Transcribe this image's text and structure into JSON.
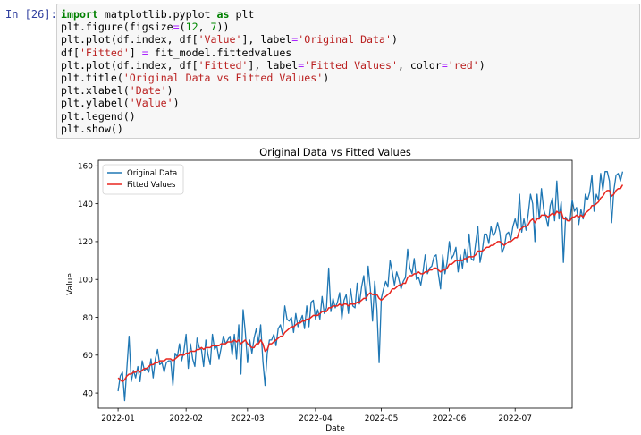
{
  "prompt_label": "In [26]:",
  "code_lines": [
    [
      {
        "t": "import",
        "c": "kw"
      },
      {
        "t": " matplotlib.pyplot "
      },
      {
        "t": "as",
        "c": "kw"
      },
      {
        "t": " plt"
      }
    ],
    [
      {
        "t": "plt.figure(figsize"
      },
      {
        "t": "=",
        "c": "op"
      },
      {
        "t": "("
      },
      {
        "t": "12",
        "c": "nm"
      },
      {
        "t": ", "
      },
      {
        "t": "7",
        "c": "nm"
      },
      {
        "t": "))"
      }
    ],
    [
      {
        "t": "plt.plot(df.index, df["
      },
      {
        "t": "'Value'",
        "c": "st"
      },
      {
        "t": "], label"
      },
      {
        "t": "=",
        "c": "op"
      },
      {
        "t": "'Original Data'",
        "c": "st"
      },
      {
        "t": ")"
      }
    ],
    [
      {
        "t": "df["
      },
      {
        "t": "'Fitted'",
        "c": "st"
      },
      {
        "t": "] "
      },
      {
        "t": "=",
        "c": "op"
      },
      {
        "t": " fit_model.fittedvalues"
      }
    ],
    [
      {
        "t": "plt.plot(df.index, df["
      },
      {
        "t": "'Fitted'",
        "c": "st"
      },
      {
        "t": "], label"
      },
      {
        "t": "=",
        "c": "op"
      },
      {
        "t": "'Fitted Values'",
        "c": "st"
      },
      {
        "t": ", color"
      },
      {
        "t": "=",
        "c": "op"
      },
      {
        "t": "'red'",
        "c": "st"
      },
      {
        "t": ")"
      }
    ],
    [
      {
        "t": "plt.title("
      },
      {
        "t": "'Original Data vs Fitted Values'",
        "c": "st"
      },
      {
        "t": ")"
      }
    ],
    [
      {
        "t": "plt.xlabel("
      },
      {
        "t": "'Date'",
        "c": "st"
      },
      {
        "t": ")"
      }
    ],
    [
      {
        "t": "plt.ylabel("
      },
      {
        "t": "'Value'",
        "c": "st"
      },
      {
        "t": ")"
      }
    ],
    [
      {
        "t": "plt.legend()"
      }
    ],
    [
      {
        "t": "plt.show()"
      }
    ]
  ],
  "colors": {
    "original": "#1f77b4",
    "fitted": "#e8261f"
  },
  "chart_data": {
    "type": "line",
    "title": "Original Data vs Fitted Values",
    "xlabel": "Date",
    "ylabel": "Value",
    "x_range": [
      "2021-12-23",
      "2022-07-27"
    ],
    "ylim": [
      32,
      163
    ],
    "x_ticks": [
      "2022-01-01",
      "2022-02-01",
      "2022-03-01",
      "2022-04-01",
      "2022-05-01",
      "2022-06-01",
      "2022-07-01"
    ],
    "x_tick_labels": [
      "2022-01",
      "2022-02",
      "2022-03",
      "2022-04",
      "2022-05",
      "2022-06",
      "2022-07"
    ],
    "y_ticks": [
      40,
      60,
      80,
      100,
      120,
      140,
      160
    ],
    "legend_position": "upper-left",
    "grid": false,
    "series": [
      {
        "name": "Original Data",
        "x_start": "2022-01-01",
        "step_days": 1,
        "values": [
          41,
          49,
          51,
          36,
          53,
          70,
          46,
          52,
          48,
          54,
          46,
          57,
          52,
          53,
          51,
          58,
          48,
          58,
          63,
          55,
          56,
          51,
          56,
          57,
          57,
          44,
          61,
          59,
          66,
          57,
          62,
          71,
          53,
          66,
          58,
          54,
          69,
          64,
          63,
          54,
          68,
          60,
          55,
          71,
          63,
          65,
          58,
          64,
          70,
          66,
          68,
          70,
          60,
          71,
          58,
          76,
          50,
          84,
          72,
          56,
          68,
          61,
          69,
          74,
          66,
          76,
          57,
          44,
          61,
          68,
          68,
          71,
          65,
          74,
          76,
          71,
          86,
          79,
          78,
          80,
          72,
          82,
          75,
          78,
          81,
          74,
          86,
          75,
          88,
          89,
          79,
          84,
          79,
          91,
          82,
          85,
          106,
          83,
          90,
          85,
          88,
          93,
          79,
          89,
          92,
          82,
          95,
          86,
          85,
          98,
          87,
          96,
          102,
          89,
          107,
          95,
          78,
          99,
          84,
          56,
          90,
          95,
          99,
          96,
          110,
          104,
          97,
          104,
          100,
          95,
          99,
          101,
          116,
          106,
          103,
          111,
          100,
          101,
          97,
          104,
          113,
          103,
          106,
          107,
          112,
          113,
          103,
          95,
          113,
          103,
          109,
          120,
          111,
          113,
          117,
          104,
          113,
          106,
          116,
          109,
          124,
          111,
          110,
          119,
          128,
          109,
          115,
          124,
          124,
          119,
          128,
          123,
          125,
          130,
          125,
          114,
          117,
          124,
          125,
          121,
          128,
          132,
          127,
          145,
          125,
          132,
          126,
          135,
          145,
          140,
          120,
          145,
          132,
          148,
          137,
          133,
          128,
          139,
          143,
          131,
          152,
          132,
          141,
          109,
          133,
          131,
          131,
          142,
          136,
          138,
          129,
          137,
          132,
          145,
          142,
          146,
          155,
          136,
          145,
          142,
          156,
          147,
          157,
          157,
          152,
          130,
          147,
          155,
          156,
          152,
          157
        ]
      },
      {
        "name": "Fitted Values",
        "x_start": "2022-01-01",
        "step_days": 1,
        "values": [
          48,
          47,
          46,
          47,
          49,
          50,
          50,
          51,
          51,
          52,
          51,
          52,
          53,
          53,
          54,
          55,
          55,
          56,
          56,
          57,
          57,
          57,
          58,
          58,
          58,
          57,
          58,
          59,
          60,
          60,
          60,
          61,
          61,
          62,
          62,
          62,
          63,
          63,
          64,
          63,
          64,
          64,
          64,
          65,
          65,
          65,
          65,
          66,
          66,
          66,
          67,
          67,
          67,
          68,
          67,
          68,
          66,
          67,
          68,
          66,
          65,
          64,
          64,
          66,
          66,
          68,
          66,
          62,
          63,
          66,
          66,
          67,
          68,
          69,
          70,
          70,
          72,
          73,
          74,
          75,
          75,
          76,
          77,
          77,
          78,
          78,
          79,
          79,
          80,
          81,
          81,
          81,
          82,
          83,
          83,
          83,
          85,
          85,
          86,
          86,
          86,
          87,
          86,
          87,
          87,
          86,
          87,
          87,
          87,
          88,
          88,
          89,
          90,
          90,
          92,
          93,
          92,
          92,
          92,
          90,
          89,
          90,
          91,
          92,
          93,
          95,
          95,
          96,
          97,
          97,
          98,
          98,
          101,
          102,
          102,
          103,
          103,
          104,
          103,
          103,
          104,
          104,
          105,
          105,
          106,
          106,
          105,
          104,
          105,
          105,
          106,
          108,
          108,
          109,
          110,
          110,
          110,
          110,
          111,
          111,
          112,
          112,
          112,
          113,
          115,
          115,
          115,
          116,
          117,
          117,
          118,
          118,
          119,
          120,
          120,
          119,
          118,
          119,
          120,
          120,
          121,
          122,
          122,
          126,
          127,
          128,
          128,
          129,
          131,
          132,
          130,
          132,
          132,
          134,
          134,
          134,
          133,
          134,
          135,
          134,
          136,
          135,
          136,
          132,
          132,
          131,
          131,
          133,
          133,
          134,
          133,
          134,
          133,
          135,
          136,
          137,
          139,
          139,
          140,
          141,
          143,
          144,
          146,
          147,
          147,
          144,
          145,
          147,
          148,
          148,
          150
        ]
      }
    ]
  }
}
